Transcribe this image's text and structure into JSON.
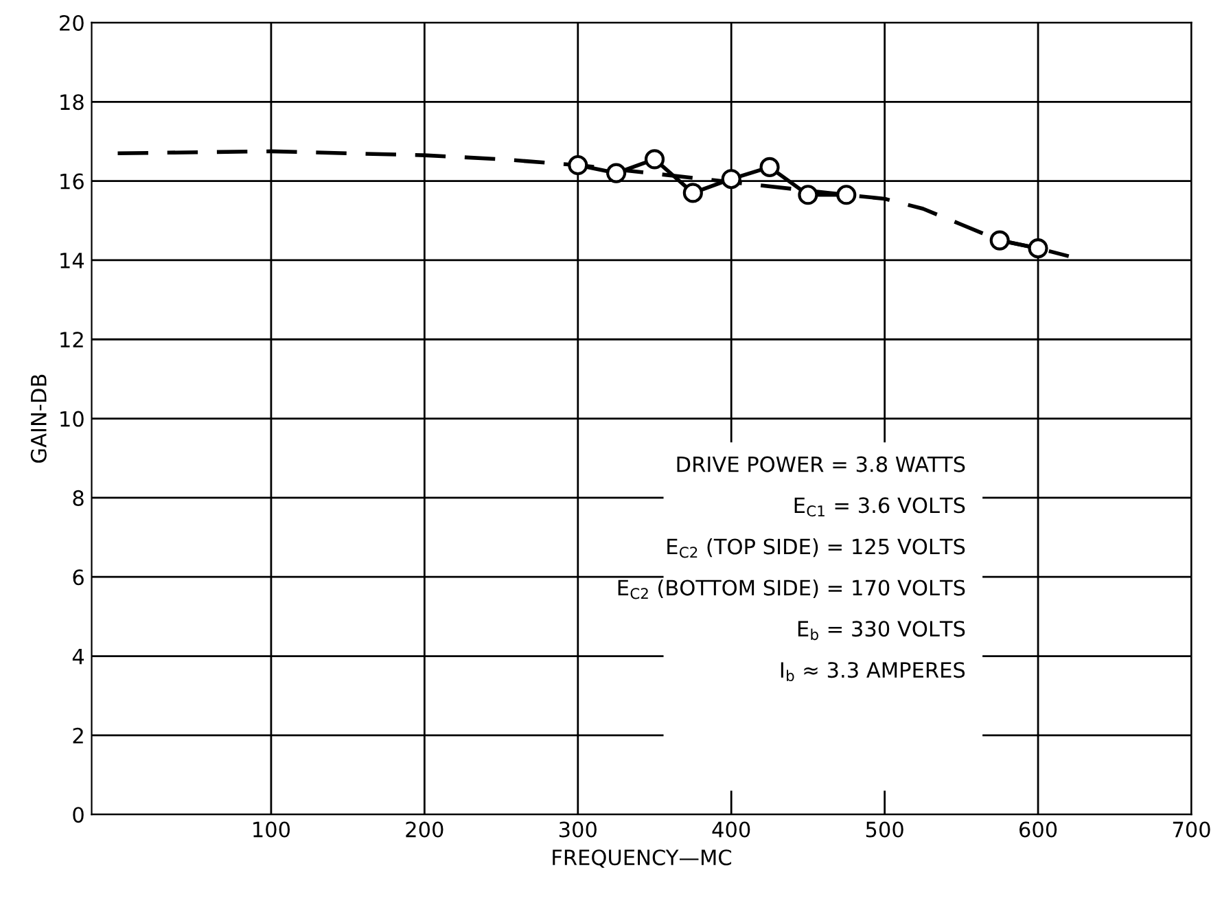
{
  "chart_data": {
    "type": "line",
    "xlabel": "FREQUENCY—MC",
    "ylabel": "GAIN-DB",
    "xlim": [
      -17,
      700
    ],
    "xticks": [
      100,
      200,
      300,
      400,
      500,
      600,
      700
    ],
    "ylim": [
      0,
      20
    ],
    "yticks": [
      0,
      2,
      4,
      6,
      8,
      10,
      12,
      14,
      16,
      18,
      20
    ],
    "grid": true,
    "legend": false,
    "series": [
      {
        "color": "#000000",
        "line_style": "dashed",
        "marker": "none",
        "x": [
          0,
          100,
          200,
          250,
          300,
          475,
          500,
          525,
          550,
          575,
          600,
          620
        ],
        "values": [
          16.7,
          16.75,
          16.65,
          16.55,
          16.4,
          15.65,
          15.55,
          15.3,
          14.9,
          14.5,
          14.3,
          14.1
        ]
      },
      {
        "color": "#000000",
        "line_style": "solid",
        "marker": "circle",
        "x": [
          300,
          325,
          350,
          375,
          400,
          425,
          450,
          475,
          525,
          575,
          600
        ],
        "values": [
          16.4,
          16.2,
          16.55,
          15.7,
          16.05,
          16.35,
          15.65,
          15.65,
          null,
          14.5,
          14.3
        ]
      }
    ],
    "annotations": [
      "DRIVE POWER = 3.8 WATTS",
      "E$_{C1}$ = 3.6 VOLTS",
      "E$_{C2}$ (TOP SIDE) = 125 VOLTS",
      "E$_{C2}$ (BOTTOM SIDE) = 170 VOLTS",
      "E$_{b}$ = 330 VOLTS",
      "I$_{b}$ ≈ 3.3 AMPERES"
    ]
  }
}
